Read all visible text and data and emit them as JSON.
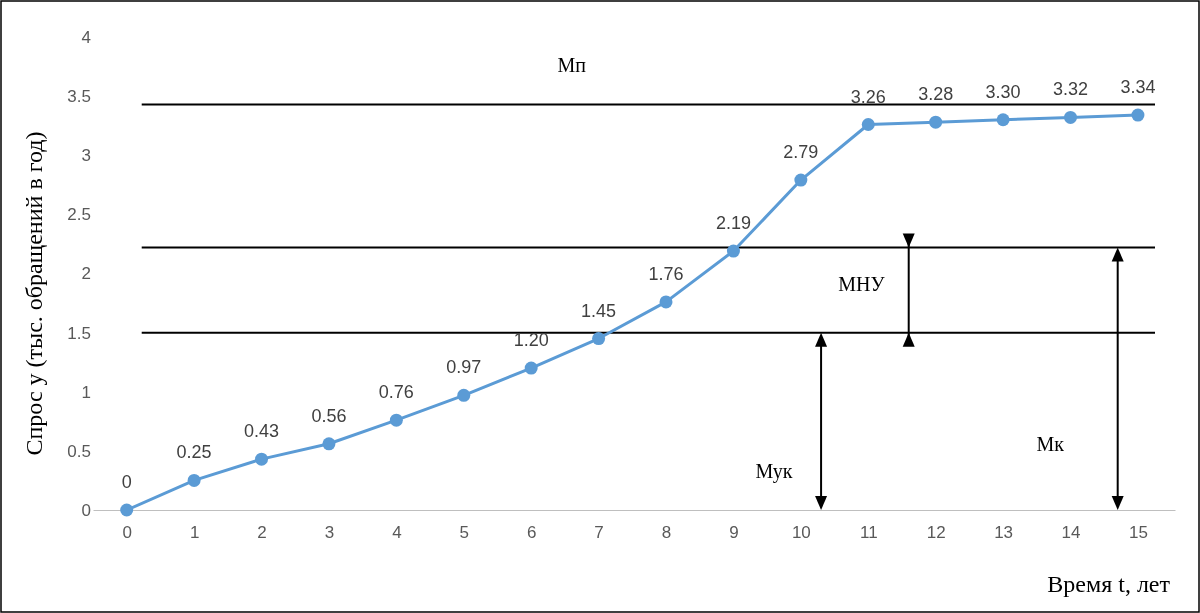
{
  "chart_data": {
    "type": "line",
    "xlabel": "Время t, лет",
    "ylabel": "Спрос y (тыс. обращений в год)",
    "x": [
      0,
      1,
      2,
      3,
      4,
      5,
      6,
      7,
      8,
      9,
      10,
      11,
      12,
      13,
      14,
      15
    ],
    "xlim": [
      -0.5,
      15.55
    ],
    "xticks": [
      0,
      1,
      2,
      3,
      4,
      5,
      6,
      7,
      8,
      9,
      10,
      11,
      12,
      13,
      14,
      15
    ],
    "series": [
      {
        "color": "#5b9bd5",
        "values": [
          0,
          0.25,
          0.43,
          0.56,
          0.76,
          0.97,
          1.2,
          1.45,
          1.76,
          2.19,
          2.79,
          3.26,
          3.28,
          3.3,
          3.32,
          3.34
        ],
        "value_labels": [
          "0",
          "0.25",
          "0.43",
          "0.56",
          "0.76",
          "0.97",
          "1.20",
          "1.45",
          "1.76",
          "2.19",
          "2.79",
          "3.26",
          "3.28",
          "3.30",
          "3.32",
          "3.34"
        ]
      }
    ],
    "ylim": [
      0,
      4
    ],
    "yticks": [
      0,
      0.5,
      1,
      1.5,
      2,
      2.5,
      3,
      3.5,
      4
    ],
    "marker": "circle",
    "grid": false,
    "ref_lines": [
      {
        "axis": "y",
        "value": 3.43,
        "color": "#000000"
      },
      {
        "axis": "y",
        "value": 2.22,
        "color": "#000000"
      },
      {
        "axis": "y",
        "value": 1.5,
        "color": "#000000"
      }
    ],
    "annotations": [
      "Мп",
      "МНУ",
      "Мук",
      "Мк"
    ]
  }
}
